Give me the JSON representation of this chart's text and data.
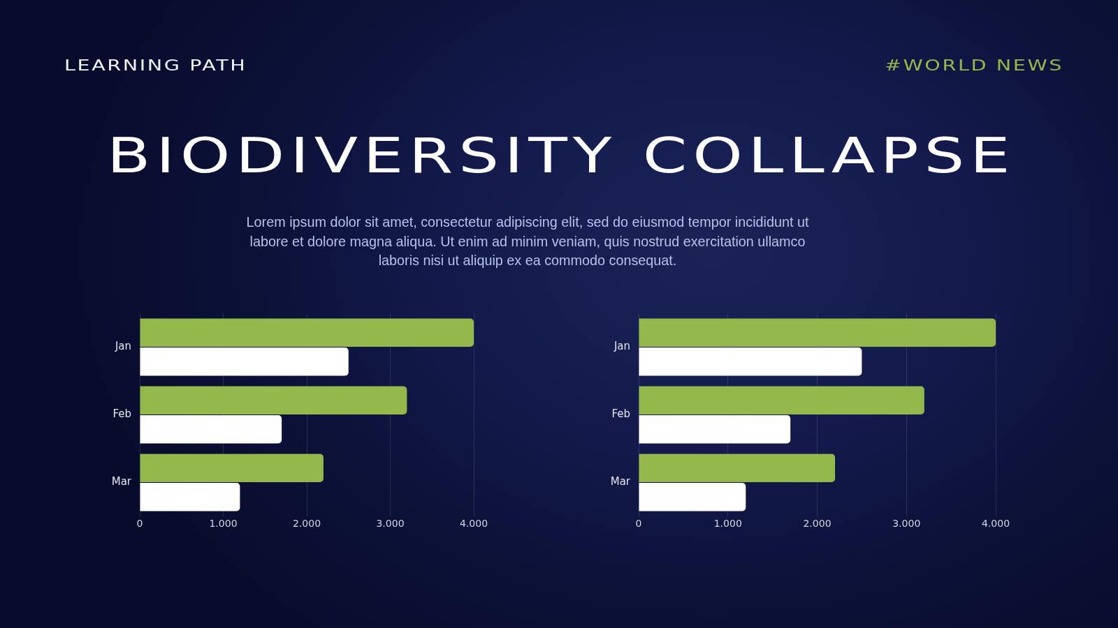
{
  "chart_data": [
    {
      "type": "bar",
      "orientation": "horizontal",
      "title": "BIODIVERSITY COLLAPSE",
      "subtitle": "Lorem ipsum dolor sit amet, consectetur adipiscing elit, sed do eiusmod tempor incididunt ut labore et dolore magna aliqua. Ut enim ad minim veniam, quis nostrud exercitation ullamco laboris nisi ut aliquip ex ea commodo consequat.",
      "annotations": [
        "LEARNING PATH",
        "#WORLD NEWS"
      ],
      "categories": [
        "Jan",
        "Feb",
        "Mar"
      ],
      "series": [
        {
          "color": "#95b84c",
          "values": [
            4000,
            3200,
            2200
          ]
        },
        {
          "color": "#ffffff",
          "values": [
            2500,
            1700,
            1200
          ]
        }
      ],
      "xlim": [
        0,
        4000
      ],
      "xticks": [
        0,
        {
          "value": 1000,
          "label": "1.000"
        },
        {
          "value": 2000,
          "label": "2.000"
        },
        {
          "value": 3000,
          "label": "3.000"
        },
        {
          "value": 4000,
          "label": "4.000"
        }
      ],
      "grid": "x"
    },
    {
      "type": "bar",
      "orientation": "horizontal",
      "categories": [
        "Jan",
        "Feb",
        "Mar"
      ],
      "series": [
        {
          "color": "#95b84c",
          "values": [
            4000,
            3200,
            2200
          ]
        },
        {
          "color": "#ffffff",
          "values": [
            2500,
            1700,
            1200
          ]
        }
      ],
      "xlim": [
        0,
        4000
      ],
      "xticks": [
        0,
        {
          "value": 1000,
          "label": "1.000"
        },
        {
          "value": 2000,
          "label": "2.000"
        },
        {
          "value": 3000,
          "label": "3.000"
        },
        {
          "value": 4000,
          "label": "4.000"
        }
      ],
      "grid": "x"
    }
  ]
}
